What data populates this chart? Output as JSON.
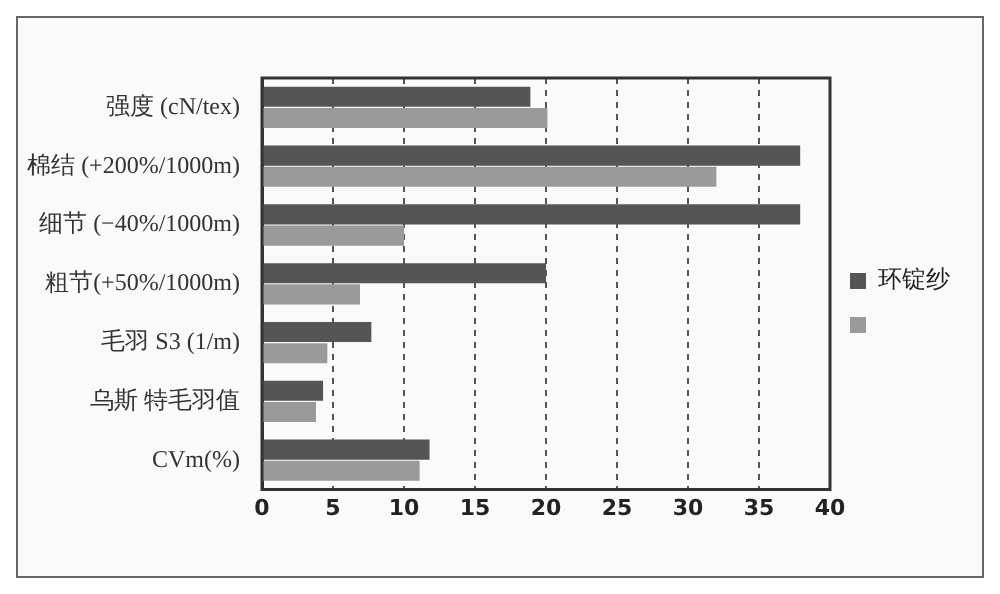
{
  "chart_data": {
    "type": "bar",
    "orientation": "horizontal",
    "categories": [
      "强度 (cN/tex)",
      "棉结 (+200%/1000m)",
      "细节 (−40%/1000m)",
      "粗节(+50%/1000m)",
      "毛羽 S3 (1/m)",
      "乌斯 特毛羽值",
      "CVm(%)"
    ],
    "series": [
      {
        "name": "环锭纱",
        "color": "#555555",
        "values": [
          18.9,
          37.9,
          37.9,
          20.0,
          7.7,
          4.3,
          11.8
        ]
      },
      {
        "color": "#9a9a9a",
        "values": [
          20.1,
          32.0,
          10.0,
          6.9,
          4.6,
          3.8,
          11.1
        ]
      }
    ],
    "xlim": [
      0,
      40
    ],
    "xticks": [
      0,
      5,
      10,
      15,
      20,
      25,
      30,
      35,
      40
    ],
    "grid": "x",
    "legend": "right"
  }
}
